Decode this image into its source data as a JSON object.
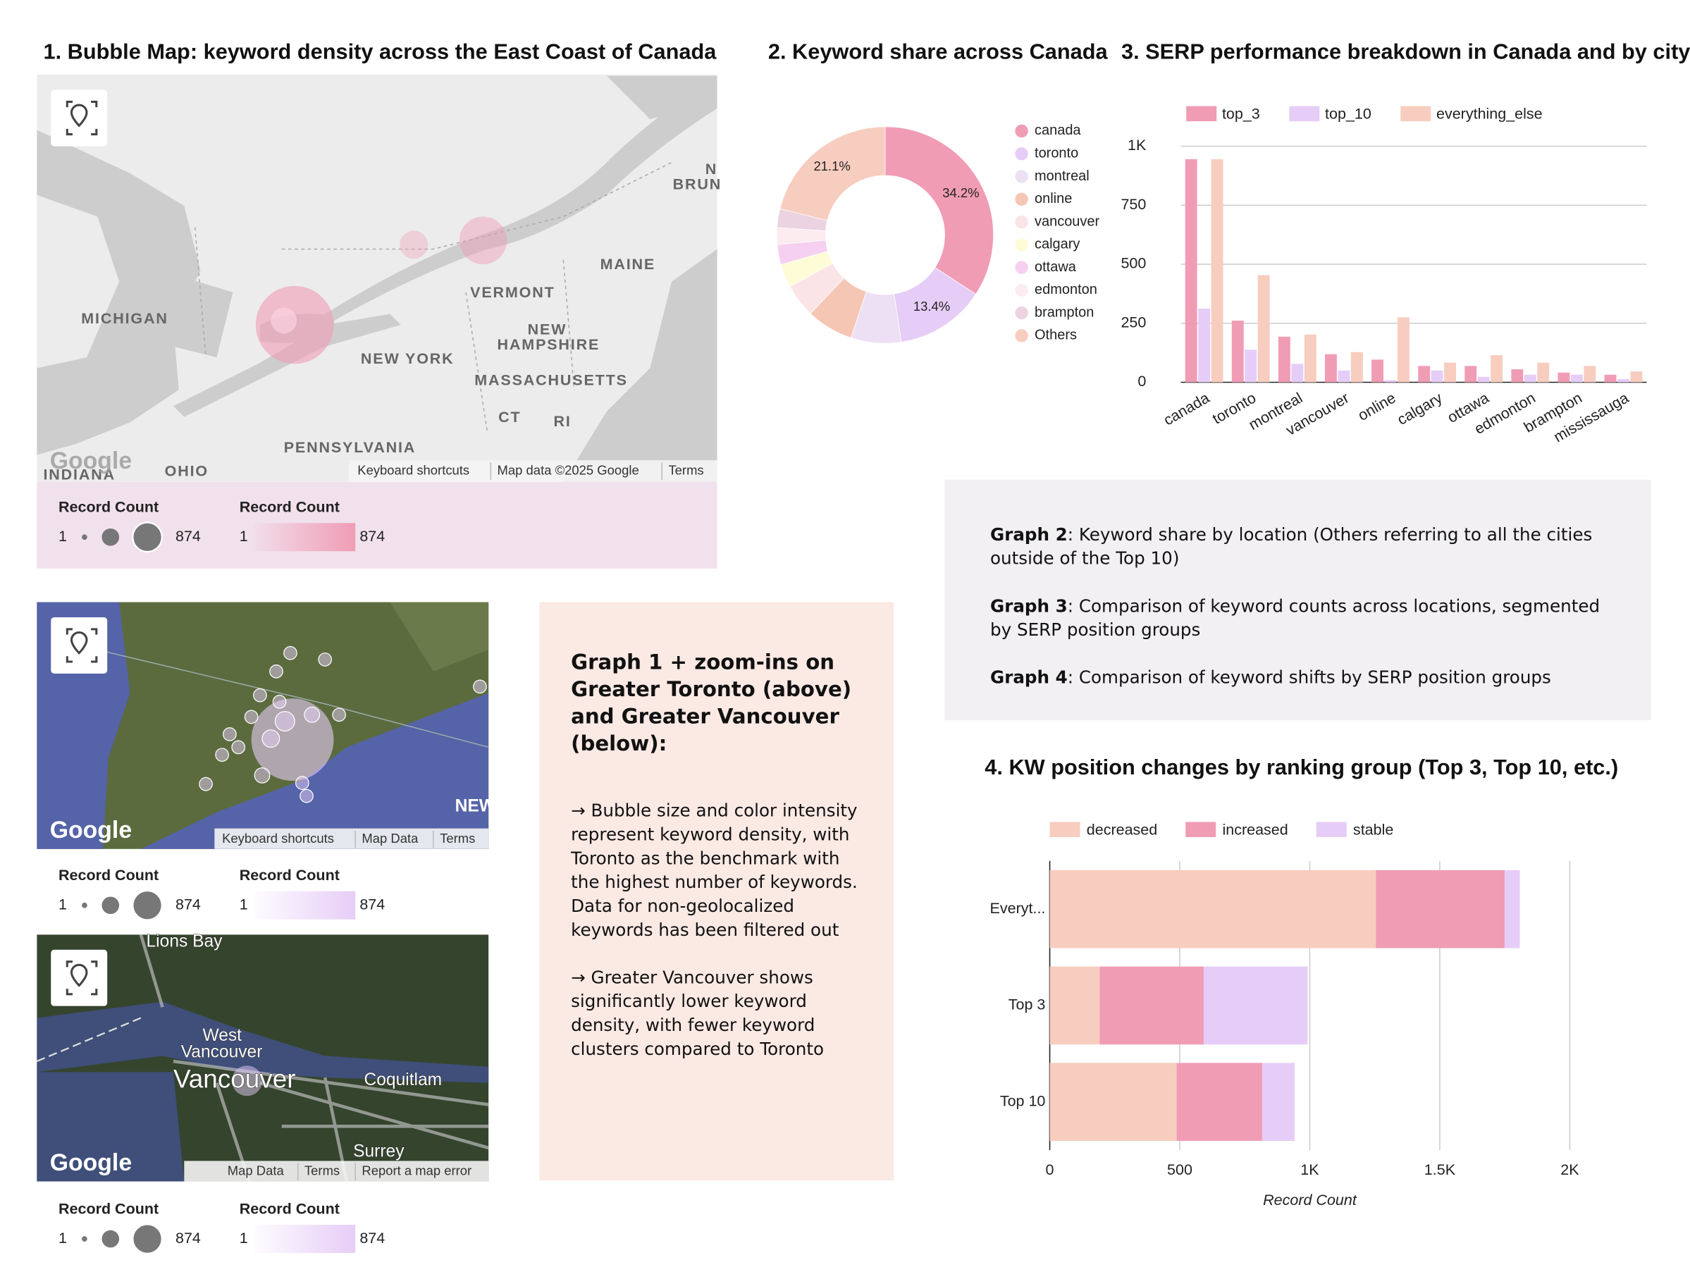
{
  "maps": [
    {
      "title": "1. Bubble Map: keyword density across the East Coast of Canada",
      "labels": [
        "MICHIGAN",
        "VERMONT",
        "MAINE",
        "NEW",
        "HAMPSHIRE",
        "NEW YORK",
        "MASSACHUSETTS",
        "CT",
        "RI",
        "PENNSYLVANIA",
        "OHIO",
        "INDIANA",
        "N",
        "BRUN"
      ],
      "logo": "Google",
      "attribution": [
        "Keyboard shortcuts",
        "Map data ©2025 Google",
        "Terms"
      ],
      "legend": {
        "size_title": "Record Count",
        "color_title": "Record Count",
        "min": 1,
        "max": 874,
        "color": "#f09cb5"
      }
    },
    {
      "labels": [
        "NEW"
      ],
      "logo": "Google",
      "attribution": [
        "Keyboard shortcuts",
        "Map Data",
        "Terms"
      ],
      "legend": {
        "size_title": "Record Count",
        "color_title": "Record Count",
        "min": 1,
        "max": 874,
        "color": "#e6cdf7"
      }
    },
    {
      "labels": [
        "Lions Bay",
        "West",
        "Vancouver",
        "Vancouver",
        "Coquitlam",
        "Surrey"
      ],
      "logo": "Google",
      "attribution": [
        "Map Data",
        "Terms",
        "Report a map error"
      ],
      "legend": {
        "size_title": "Record Count",
        "color_title": "Record Count",
        "min": 1,
        "max": 874,
        "color": "#e6cdf7"
      }
    }
  ],
  "side_note": {
    "heading": "Graph 1 + zoom-ins on Greater Toronto (above) and Greater Vancouver (below):",
    "paragraphs": [
      "→ Bubble size and color intensity represent keyword density, with Toronto as the benchmark with the highest number of keywords. Data for non-geolocalized keywords has been filtered out",
      "→ Greater Vancouver shows significantly lower keyword density, with fewer keyword clusters compared to Toronto"
    ]
  },
  "graph_notes": [
    {
      "label": "Graph 2",
      "text": ": Keyword share by location (Others referring to all the cities outside of the Top 10)"
    },
    {
      "label": "Graph 3",
      "text": ": Comparison of keyword counts across locations, segmented by SERP position groups"
    },
    {
      "label": "Graph 4",
      "text": ": Comparison of keyword shifts by SERP position groups"
    }
  ],
  "chart_data": [
    {
      "type": "pie",
      "title": "2. Keyword share across Canada",
      "categories": [
        "canada",
        "toronto",
        "montreal",
        "online",
        "vancouver",
        "calgary",
        "ottawa",
        "edmonton",
        "brampton",
        "Others"
      ],
      "values": [
        34.2,
        13.4,
        7.5,
        7,
        5,
        3.5,
        3,
        2.5,
        2.8,
        21.1
      ],
      "value_labels": [
        "34.2%",
        "13.4%",
        null,
        null,
        null,
        null,
        null,
        null,
        null,
        "21.1%"
      ],
      "colors": [
        "#f09cb5",
        "#e6cdf7",
        "#ede0f5",
        "#f6c6b4",
        "#fbe4e6",
        "#fdfcd6",
        "#f5d0f0",
        "#fcebef",
        "#ecd3e2",
        "#f7cdbf"
      ],
      "donut": true,
      "legend": "right"
    },
    {
      "type": "bar",
      "title": "3. SERP performance breakdown in Canada and by city",
      "categories": [
        "canada",
        "toronto",
        "montreal",
        "vancouver",
        "online",
        "calgary",
        "ottawa",
        "edmonton",
        "brampton",
        "mississauga"
      ],
      "series": [
        {
          "name": "top_3",
          "color": "#f09cb5",
          "values": [
            945,
            261,
            193,
            119,
            96,
            69,
            69,
            55,
            41,
            32
          ]
        },
        {
          "name": "top_10",
          "color": "#e6cdf7",
          "values": [
            312,
            138,
            78,
            50,
            9,
            50,
            23,
            32,
            32,
            14
          ]
        },
        {
          "name": "everything_else",
          "color": "#f7cdbf",
          "values": [
            945,
            454,
            202,
            128,
            275,
            83,
            115,
            83,
            69,
            46
          ]
        }
      ],
      "ylim": [
        0,
        1000
      ],
      "yticks": [
        0,
        250,
        500,
        750,
        {
          "value": 1000,
          "label": "1K"
        }
      ],
      "grid": true,
      "legend": "top"
    },
    {
      "type": "hbar-stacked",
      "title": "4. KW position changes by ranking group (Top 3, Top 10, etc.)",
      "categories": [
        "Everyt...",
        "Top 3",
        "Top 10"
      ],
      "series": [
        {
          "name": "decreased",
          "color": "#f7cdbf",
          "values": [
            1254,
            192,
            488
          ]
        },
        {
          "name": "increased",
          "color": "#f09cb5",
          "values": [
            496,
            400,
            329
          ]
        },
        {
          "name": "stable",
          "color": "#e6cdf7",
          "values": [
            58,
            400,
            125
          ]
        }
      ],
      "xlim": [
        0,
        2000
      ],
      "xticks": [
        0,
        500,
        {
          "value": 1000,
          "label": "1K"
        },
        {
          "value": 1500,
          "label": "1.5K"
        },
        {
          "value": 2000,
          "label": "2K"
        }
      ],
      "x_label": "Record Count",
      "grid": true,
      "legend": "top"
    }
  ]
}
